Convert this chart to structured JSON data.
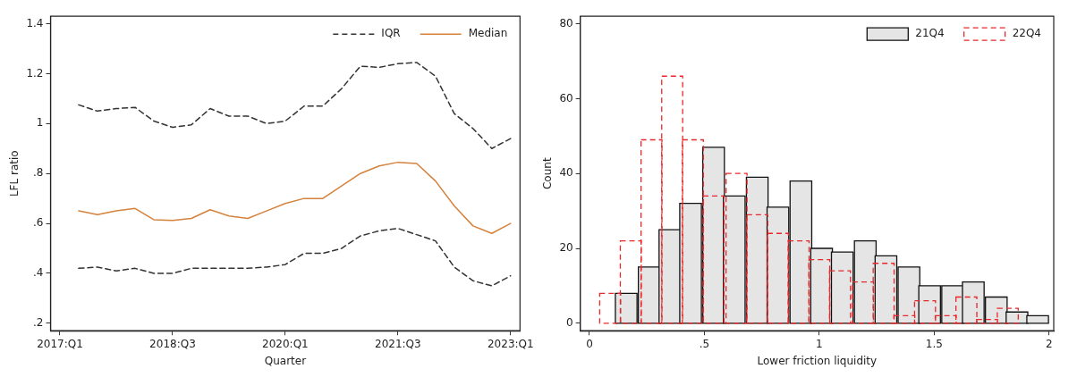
{
  "chart_data": [
    {
      "type": "line",
      "xlabel": "Quarter",
      "ylabel": "LFL ratio",
      "categories": [
        "2017:Q1",
        null,
        null,
        null,
        null,
        null,
        "2018:Q3",
        null,
        null,
        null,
        null,
        null,
        "2020:Q1",
        null,
        null,
        null,
        null,
        null,
        "2021:Q3",
        null,
        null,
        null,
        null,
        null,
        "2023:Q1"
      ],
      "series": [
        {
          "name": "IQR",
          "color": "#333333",
          "line_style": "dashed",
          "values": [
            null,
            1.075,
            1.05,
            1.06,
            1.065,
            1.01,
            0.985,
            0.995,
            1.06,
            1.03,
            1.03,
            1.0,
            1.01,
            1.07,
            1.07,
            1.14,
            1.23,
            1.225,
            1.24,
            1.245,
            1.19,
            1.04,
            0.98,
            0.9,
            0.94
          ]
        },
        {
          "name": "Median",
          "color": "#d4823c",
          "line_style": "solid",
          "values": [
            null,
            0.65,
            0.635,
            0.65,
            0.66,
            0.615,
            0.612,
            0.62,
            0.655,
            0.63,
            0.62,
            0.65,
            0.68,
            0.7,
            0.7,
            0.75,
            0.8,
            0.83,
            0.845,
            0.84,
            0.77,
            0.67,
            0.59,
            0.56,
            0.6
          ]
        },
        {
          "color": "#333333",
          "line_style": "dashed",
          "values": [
            null,
            0.42,
            0.425,
            0.41,
            0.42,
            0.4,
            0.4,
            0.42,
            0.42,
            0.42,
            0.42,
            0.425,
            0.435,
            0.48,
            0.48,
            0.5,
            0.55,
            0.57,
            0.58,
            0.555,
            0.53,
            0.425,
            0.37,
            0.35,
            0.39
          ]
        }
      ],
      "ylim": [
        0.17,
        1.43
      ],
      "yticks": [
        {
          "value": 0.2,
          "label": ".2"
        },
        {
          "value": 0.4,
          "label": ".4"
        },
        {
          "value": 0.6,
          "label": ".6"
        },
        {
          "value": 0.8,
          "label": ".8"
        },
        1,
        1.2,
        1.4
      ],
      "grid": false,
      "legend": "top right",
      "marker": "none"
    },
    {
      "type": "bar",
      "xlabel": "Lower friction liquidity",
      "ylabel": "Count",
      "series": [
        {
          "name": "21Q4",
          "color": "#e5e5e5",
          "line_style": "solid",
          "x": [
            0.16,
            0.26,
            0.35,
            0.44,
            0.54,
            0.63,
            0.73,
            0.82,
            0.92,
            1.01,
            1.1,
            1.2,
            1.29,
            1.39,
            1.48,
            1.58,
            1.67,
            1.77,
            1.86,
            1.95
          ],
          "values": [
            8,
            15,
            25,
            32,
            47,
            34,
            39,
            31,
            38,
            20,
            19,
            22,
            18,
            15,
            10,
            10,
            11,
            7,
            3,
            2
          ]
        },
        {
          "name": "22Q4",
          "color": "#e8282b",
          "line_style": "dashed",
          "x": [
            0.09,
            0.18,
            0.27,
            0.36,
            0.45,
            0.54,
            0.64,
            0.73,
            0.82,
            0.91,
            1.0,
            1.09,
            1.19,
            1.28,
            1.37,
            1.46,
            1.55,
            1.64,
            1.73,
            1.82
          ],
          "values": [
            8,
            22,
            49,
            66,
            49,
            34,
            40,
            29,
            24,
            22,
            17,
            14,
            11,
            16,
            2,
            6,
            2,
            7,
            1,
            4
          ]
        }
      ],
      "xlim": [
        -0.04,
        2.02
      ],
      "xticks": [
        0,
        {
          "value": 0.5,
          "label": ".5"
        },
        1,
        1.5,
        2
      ],
      "ylim": [
        -2,
        82
      ],
      "yticks": [
        0,
        20,
        40,
        60,
        80
      ],
      "grid": false,
      "legend": "top right"
    }
  ]
}
